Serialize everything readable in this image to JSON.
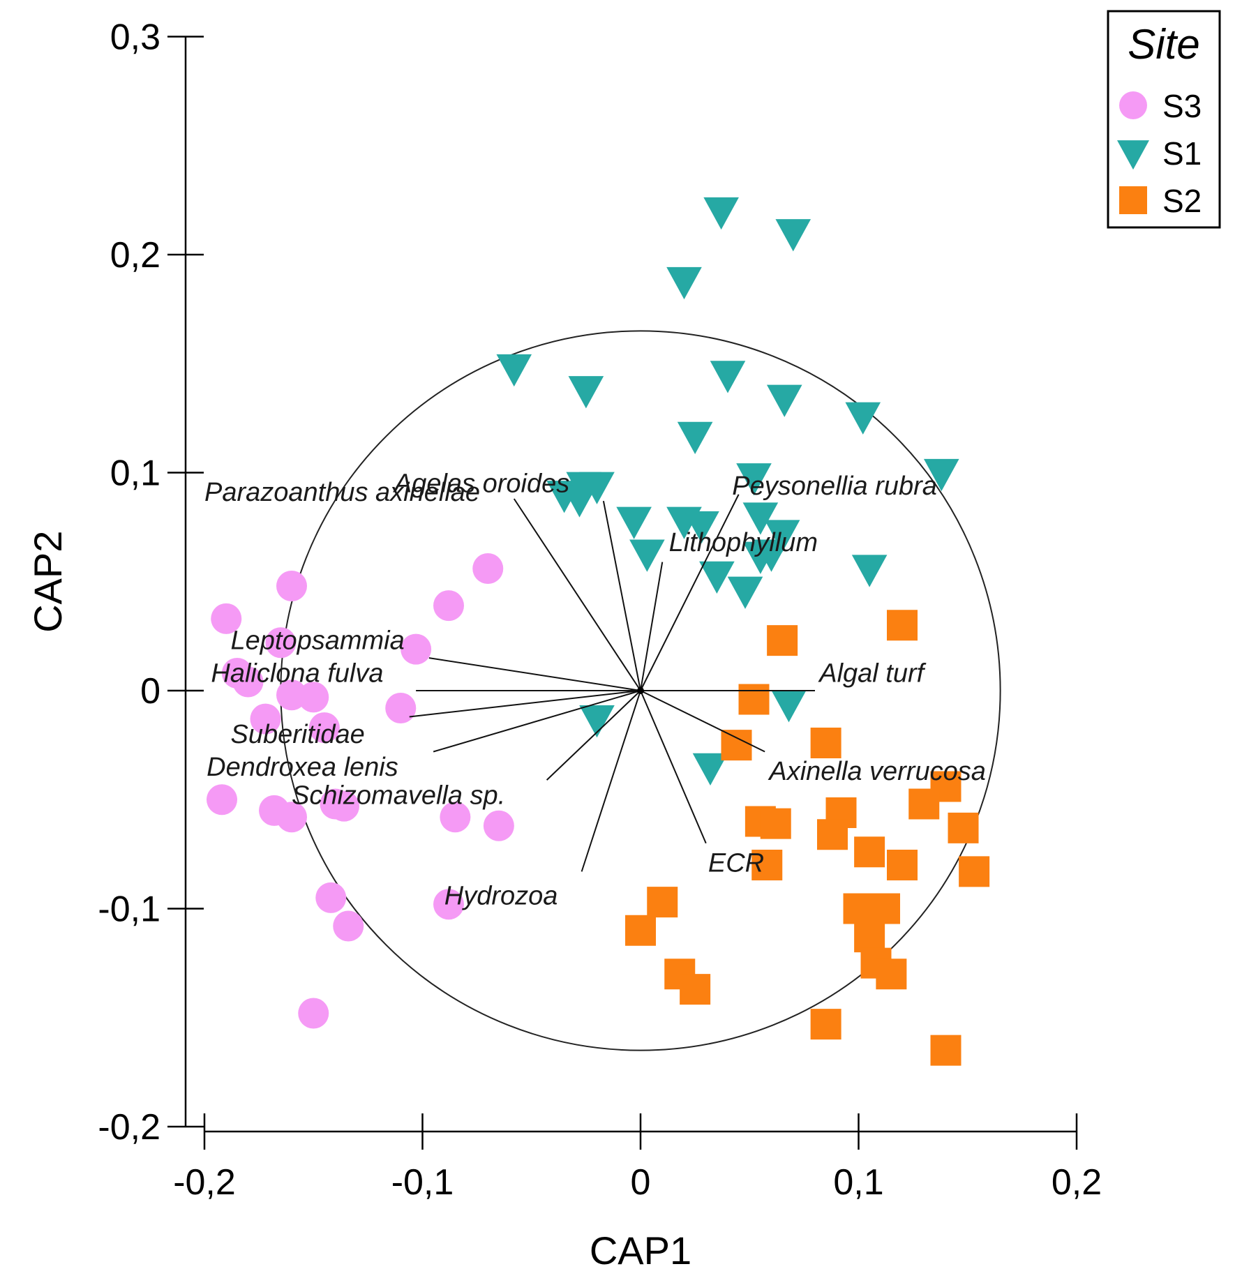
{
  "chart_data": {
    "type": "scatter",
    "title": "",
    "xlabel": "CAP1",
    "ylabel": "CAP2",
    "xlim": [
      -0.2,
      0.2
    ],
    "ylim": [
      -0.2,
      0.3
    ],
    "xticks": [
      "-0,2",
      "-0,1",
      "0",
      "0,1",
      "0,2"
    ],
    "yticks": [
      "-0,2",
      "-0,1",
      "0",
      "0,1",
      "0,2",
      "0,3"
    ],
    "xtick_values": [
      -0.2,
      -0.1,
      0,
      0.1,
      0.2
    ],
    "ytick_values": [
      -0.2,
      -0.1,
      0,
      0.1,
      0.2,
      0.3
    ],
    "grid": false,
    "legend": {
      "title": "Site",
      "placement": "top-right"
    },
    "correlation_circle": {
      "center": [
        0,
        0
      ],
      "radius": 0.165
    },
    "series": [
      {
        "name": "S3",
        "marker": "circle",
        "color": "#f59af5",
        "points": [
          [
            -0.19,
            0.033
          ],
          [
            -0.16,
            0.048
          ],
          [
            -0.07,
            0.056
          ],
          [
            -0.088,
            0.039
          ],
          [
            -0.103,
            0.019
          ],
          [
            -0.165,
            0.022
          ],
          [
            -0.185,
            0.008
          ],
          [
            -0.18,
            0.004
          ],
          [
            -0.16,
            -0.002
          ],
          [
            -0.15,
            -0.003
          ],
          [
            -0.11,
            -0.008
          ],
          [
            -0.172,
            -0.013
          ],
          [
            -0.145,
            -0.017
          ],
          [
            -0.192,
            -0.05
          ],
          [
            -0.168,
            -0.055
          ],
          [
            -0.16,
            -0.058
          ],
          [
            -0.14,
            -0.052
          ],
          [
            -0.136,
            -0.053
          ],
          [
            -0.085,
            -0.058
          ],
          [
            -0.065,
            -0.062
          ],
          [
            -0.142,
            -0.095
          ],
          [
            -0.134,
            -0.108
          ],
          [
            -0.088,
            -0.098
          ],
          [
            -0.15,
            -0.148
          ]
        ]
      },
      {
        "name": "S1",
        "marker": "triangle-down",
        "color": "#26a9a4",
        "points": [
          [
            0.037,
            0.22
          ],
          [
            0.07,
            0.21
          ],
          [
            0.02,
            0.188
          ],
          [
            -0.058,
            0.148
          ],
          [
            -0.025,
            0.138
          ],
          [
            0.04,
            0.145
          ],
          [
            0.066,
            0.134
          ],
          [
            0.102,
            0.126
          ],
          [
            0.025,
            0.117
          ],
          [
            0.138,
            0.1
          ],
          [
            0.052,
            0.098
          ],
          [
            -0.035,
            0.09
          ],
          [
            -0.028,
            0.088
          ],
          [
            -0.026,
            0.094
          ],
          [
            -0.02,
            0.094
          ],
          [
            -0.003,
            0.078
          ],
          [
            0.02,
            0.078
          ],
          [
            0.028,
            0.076
          ],
          [
            0.055,
            0.08
          ],
          [
            0.065,
            0.072
          ],
          [
            0.003,
            0.063
          ],
          [
            0.055,
            0.062
          ],
          [
            0.06,
            0.063
          ],
          [
            0.035,
            0.053
          ],
          [
            0.048,
            0.046
          ],
          [
            0.105,
            0.056
          ],
          [
            0.068,
            -0.006
          ],
          [
            -0.02,
            -0.013
          ],
          [
            0.032,
            -0.035
          ]
        ]
      },
      {
        "name": "S2",
        "marker": "square",
        "color": "#fb8011",
        "points": [
          [
            0.12,
            0.03
          ],
          [
            0.065,
            0.023
          ],
          [
            0.052,
            -0.004
          ],
          [
            0.044,
            -0.025
          ],
          [
            0.085,
            -0.024
          ],
          [
            0.14,
            -0.044
          ],
          [
            0.13,
            -0.052
          ],
          [
            0.092,
            -0.056
          ],
          [
            0.088,
            -0.066
          ],
          [
            0.055,
            -0.06
          ],
          [
            0.062,
            -0.061
          ],
          [
            0.148,
            -0.063
          ],
          [
            0.105,
            -0.074
          ],
          [
            0.058,
            -0.08
          ],
          [
            0.12,
            -0.08
          ],
          [
            0.153,
            -0.083
          ],
          [
            0.1,
            -0.1
          ],
          [
            0.112,
            -0.1
          ],
          [
            0.105,
            -0.113
          ],
          [
            0.108,
            -0.125
          ],
          [
            0.0,
            -0.11
          ],
          [
            0.01,
            -0.097
          ],
          [
            0.018,
            -0.13
          ],
          [
            0.025,
            -0.137
          ],
          [
            0.115,
            -0.13
          ],
          [
            0.085,
            -0.153
          ],
          [
            0.14,
            -0.165
          ]
        ]
      }
    ],
    "vectors": [
      {
        "label": "Parazoanthus axinellae",
        "end": [
          -0.058,
          0.088
        ],
        "label_pos": [
          -0.2,
          0.087
        ]
      },
      {
        "label": "Agelas oroides",
        "end": [
          -0.017,
          0.087
        ],
        "label_pos": [
          -0.113,
          0.091
        ]
      },
      {
        "label": "Peysonellia rubra",
        "end": [
          0.045,
          0.09
        ],
        "label_pos": [
          0.042,
          0.09
        ]
      },
      {
        "label": "Lithophyllum",
        "end": [
          0.01,
          0.059
        ],
        "label_pos": [
          0.013,
          0.064
        ]
      },
      {
        "label": "Leptopsammia",
        "end": [
          -0.097,
          0.015
        ],
        "label_pos": [
          -0.188,
          0.019
        ]
      },
      {
        "label": "Haliclona fulva",
        "end": [
          -0.103,
          0.0
        ],
        "label_pos": [
          -0.197,
          0.004
        ]
      },
      {
        "label": "Algal turf",
        "end": [
          0.08,
          0.0
        ],
        "label_pos": [
          0.082,
          0.004
        ]
      },
      {
        "label": "Suberitidae",
        "end": [
          -0.106,
          -0.012
        ],
        "label_pos": [
          -0.188,
          -0.024
        ]
      },
      {
        "label": "Dendroxea lenis",
        "end": [
          -0.095,
          -0.028
        ],
        "label_pos": [
          -0.199,
          -0.039
        ]
      },
      {
        "label": "Schizomavella sp.",
        "end": [
          -0.043,
          -0.041
        ],
        "label_pos": [
          -0.16,
          -0.052
        ]
      },
      {
        "label": "Axinella verrucosa",
        "end": [
          0.057,
          -0.028
        ],
        "label_pos": [
          0.059,
          -0.041
        ]
      },
      {
        "label": "ECR",
        "end": [
          0.03,
          -0.07
        ],
        "label_pos": [
          0.031,
          -0.083
        ]
      },
      {
        "label": "Hydrozoa",
        "end": [
          -0.027,
          -0.083
        ],
        "label_pos": [
          -0.09,
          -0.098
        ]
      }
    ]
  }
}
